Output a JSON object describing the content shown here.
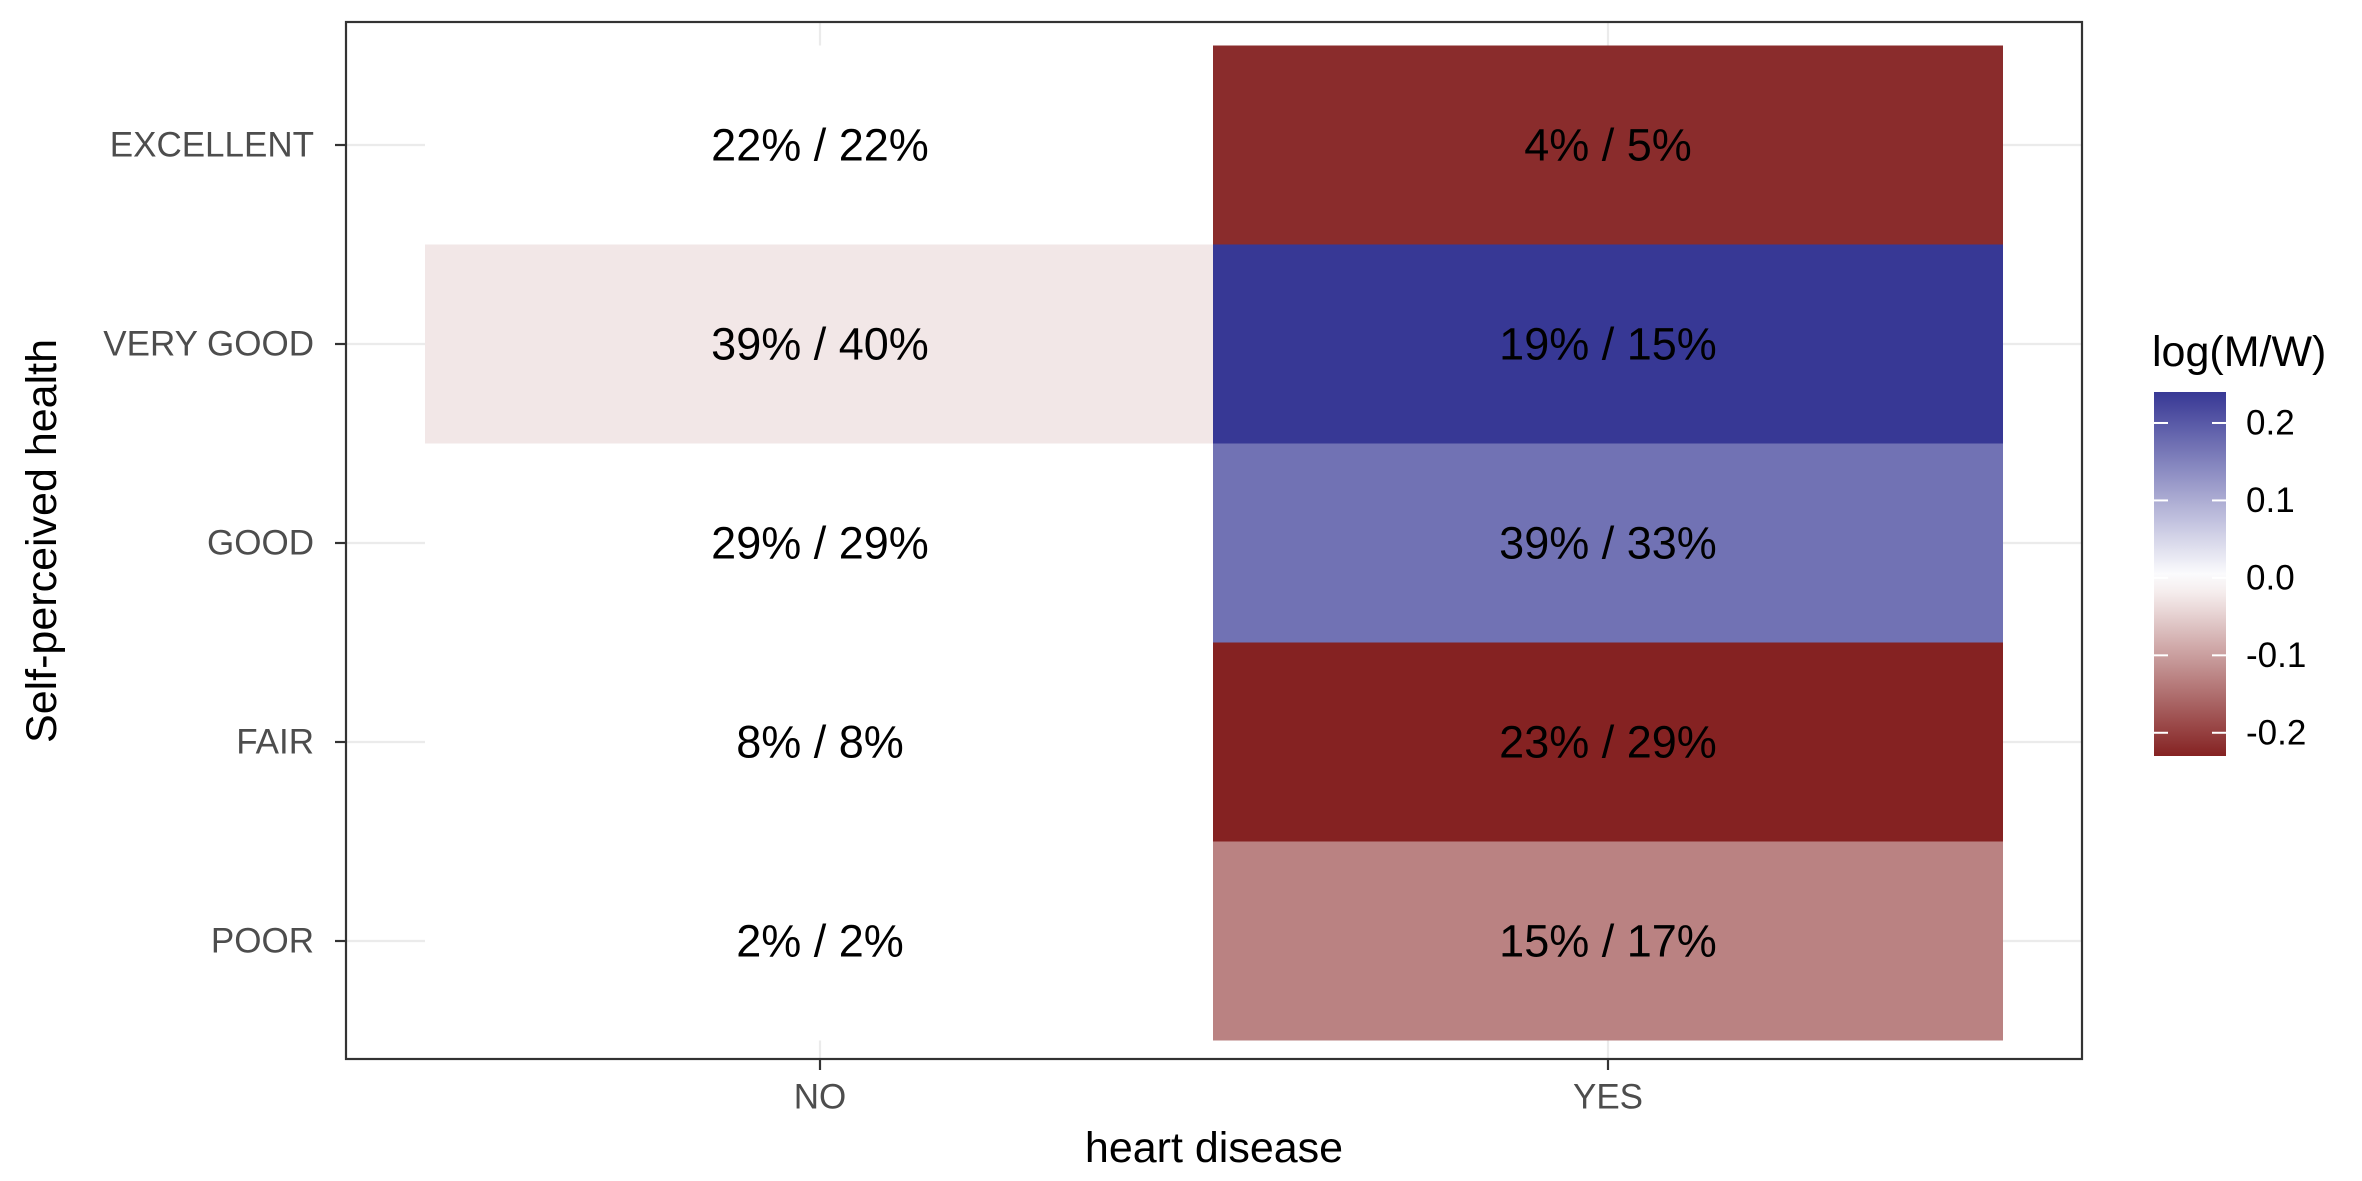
{
  "chart_data": {
    "type": "heatmap",
    "title": "",
    "xlabel": "heart disease",
    "ylabel": "Self-perceived health",
    "x_categories": [
      "NO",
      "YES"
    ],
    "y_categories": [
      "EXCELLENT",
      "VERY GOOD",
      "GOOD",
      "FAIR",
      "POOR"
    ],
    "cells": [
      {
        "x": "NO",
        "y": "EXCELLENT",
        "label": "22% / 22%",
        "value": 0.0
      },
      {
        "x": "NO",
        "y": "VERY GOOD",
        "label": "39% / 40%",
        "value": -0.025
      },
      {
        "x": "NO",
        "y": "GOOD",
        "label": "29% / 29%",
        "value": 0.0
      },
      {
        "x": "NO",
        "y": "FAIR",
        "label": "8% / 8%",
        "value": 0.0
      },
      {
        "x": "NO",
        "y": "POOR",
        "label": "2% / 2%",
        "value": 0.0
      },
      {
        "x": "YES",
        "y": "EXCELLENT",
        "label": "4% / 5%",
        "value": -0.22
      },
      {
        "x": "YES",
        "y": "VERY GOOD",
        "label": "19% / 15%",
        "value": 0.24
      },
      {
        "x": "YES",
        "y": "GOOD",
        "label": "39% / 33%",
        "value": 0.17
      },
      {
        "x": "YES",
        "y": "FAIR",
        "label": "23% / 29%",
        "value": -0.23
      },
      {
        "x": "YES",
        "y": "POOR",
        "label": "15% / 17%",
        "value": -0.13
      }
    ],
    "legend": {
      "title": "log(M/W)",
      "ticks": [
        0.2,
        0.1,
        0.0,
        -0.1,
        -0.2
      ],
      "tick_labels": [
        "0.2",
        "0.1",
        "0.0",
        "-0.1",
        "-0.2"
      ],
      "range": [
        -0.23,
        0.24
      ],
      "high_color": "#373895",
      "mid_color": "#ffffff",
      "low_color": "#852222",
      "placement": "right"
    },
    "grid": true,
    "panel_border": true
  }
}
